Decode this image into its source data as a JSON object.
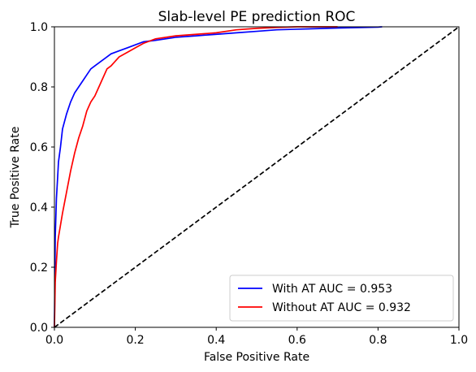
{
  "chart_data": {
    "type": "line",
    "title": "Slab-level PE prediction ROC",
    "xlabel": "False Positive Rate",
    "ylabel": "True Positive Rate",
    "xlim": [
      0.0,
      1.0
    ],
    "ylim": [
      0.0,
      1.0
    ],
    "xticks": [
      "0.0",
      "0.2",
      "0.4",
      "0.6",
      "0.8",
      "1.0"
    ],
    "yticks": [
      "0.0",
      "0.2",
      "0.4",
      "0.6",
      "0.8",
      "1.0"
    ],
    "grid": false,
    "legend_position": "lower-right",
    "series": [
      {
        "name": "With AT AUC = 0.953",
        "color": "#0000ff",
        "linestyle": "solid",
        "x": [
          0.0,
          0.002,
          0.005,
          0.008,
          0.01,
          0.015,
          0.02,
          0.03,
          0.04,
          0.05,
          0.06,
          0.07,
          0.08,
          0.09,
          0.1,
          0.12,
          0.14,
          0.16,
          0.18,
          0.2,
          0.22,
          0.25,
          0.3,
          0.35,
          0.4,
          0.45,
          0.5,
          0.55,
          0.6,
          0.7,
          0.8,
          0.81
        ],
        "y": [
          0.0,
          0.3,
          0.43,
          0.5,
          0.55,
          0.6,
          0.66,
          0.71,
          0.75,
          0.78,
          0.8,
          0.82,
          0.84,
          0.86,
          0.87,
          0.89,
          0.91,
          0.92,
          0.93,
          0.94,
          0.95,
          0.955,
          0.965,
          0.97,
          0.975,
          0.98,
          0.985,
          0.99,
          0.992,
          0.996,
          0.999,
          1.0
        ]
      },
      {
        "name": "Without AT AUC = 0.932",
        "color": "#ff0000",
        "linestyle": "solid",
        "x": [
          0.0,
          0.002,
          0.005,
          0.008,
          0.01,
          0.02,
          0.03,
          0.04,
          0.05,
          0.06,
          0.07,
          0.08,
          0.09,
          0.1,
          0.11,
          0.12,
          0.13,
          0.14,
          0.15,
          0.16,
          0.18,
          0.2,
          0.22,
          0.25,
          0.3,
          0.35,
          0.4,
          0.45,
          0.5,
          0.55,
          0.6,
          0.7
        ],
        "y": [
          0.0,
          0.15,
          0.22,
          0.28,
          0.3,
          0.38,
          0.45,
          0.52,
          0.58,
          0.63,
          0.67,
          0.72,
          0.75,
          0.77,
          0.8,
          0.83,
          0.86,
          0.87,
          0.885,
          0.9,
          0.915,
          0.93,
          0.945,
          0.96,
          0.97,
          0.975,
          0.98,
          0.99,
          0.995,
          0.998,
          1.0,
          1.0
        ]
      },
      {
        "name": "",
        "color": "#000000",
        "linestyle": "dashed",
        "x": [
          0.0,
          1.0
        ],
        "y": [
          0.0,
          1.0
        ]
      }
    ]
  }
}
